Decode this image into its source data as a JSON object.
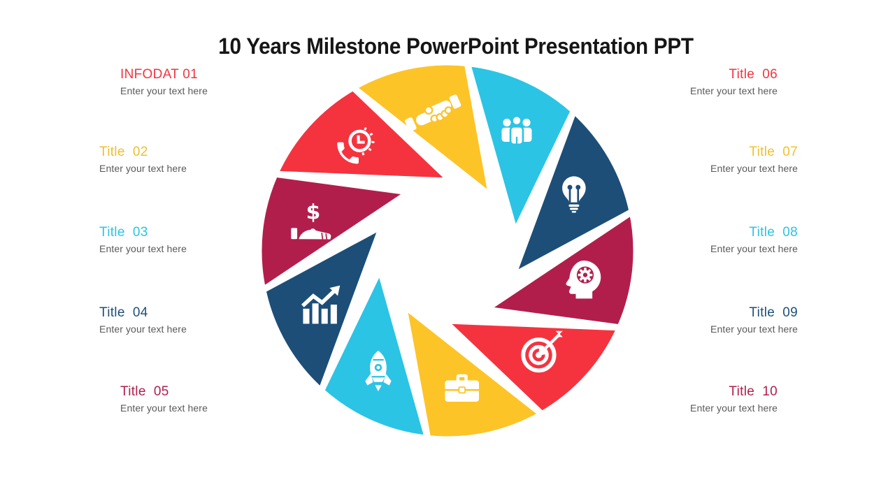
{
  "slide": {
    "title": "10 Years Milestone PowerPoint Presentation PPT"
  },
  "items": [
    {
      "label": "INFODAT 01",
      "sublabel": "Enter your text here",
      "color": "#F5333F",
      "side": "left"
    },
    {
      "label": "Title  02",
      "sublabel": "Enter your text here",
      "color": "#EFBE2D",
      "side": "left"
    },
    {
      "label": "Title  03",
      "sublabel": "Enter your text here",
      "color": "#2BC4E4",
      "side": "left"
    },
    {
      "label": "Title  04",
      "sublabel": "Enter your text here",
      "color": "#1D5078",
      "side": "left"
    },
    {
      "label": "Title  05",
      "sublabel": "Enter your text here",
      "color": "#B21E4C",
      "side": "left"
    },
    {
      "label": "Title  06",
      "sublabel": "Enter your text here",
      "color": "#F5333F",
      "side": "right"
    },
    {
      "label": "Title  07",
      "sublabel": "Enter your text here",
      "color": "#F2C02C",
      "side": "right"
    },
    {
      "label": "Title  08",
      "sublabel": "Enter your text here",
      "color": "#2BC4E4",
      "side": "right"
    },
    {
      "label": "Title  09",
      "sublabel": "Enter your text here",
      "color": "#1D5078",
      "side": "right"
    },
    {
      "label": "Title  10",
      "sublabel": "Enter your text here",
      "color": "#B21E4C",
      "side": "right"
    }
  ],
  "diagram": {
    "type": "aperture-cycle",
    "segments": 10,
    "icon_color": "#FFFFFF",
    "blades": [
      {
        "icon": "phone-clock-icon",
        "color": "#F5333F"
      },
      {
        "icon": "handshake-icon",
        "color": "#FDC428"
      },
      {
        "icon": "people-icon",
        "color": "#2BC4E4"
      },
      {
        "icon": "lightbulb-icon",
        "color": "#1C4E78"
      },
      {
        "icon": "head-gear-icon",
        "color": "#B21E4C"
      },
      {
        "icon": "target-arrow-icon",
        "color": "#F5333F"
      },
      {
        "icon": "briefcase-icon",
        "color": "#FDC428"
      },
      {
        "icon": "rocket-icon",
        "color": "#2BC4E4"
      },
      {
        "icon": "growth-chart-icon",
        "color": "#1C4E78"
      },
      {
        "icon": "dollar-hand-icon",
        "color": "#B21E4C"
      }
    ]
  }
}
